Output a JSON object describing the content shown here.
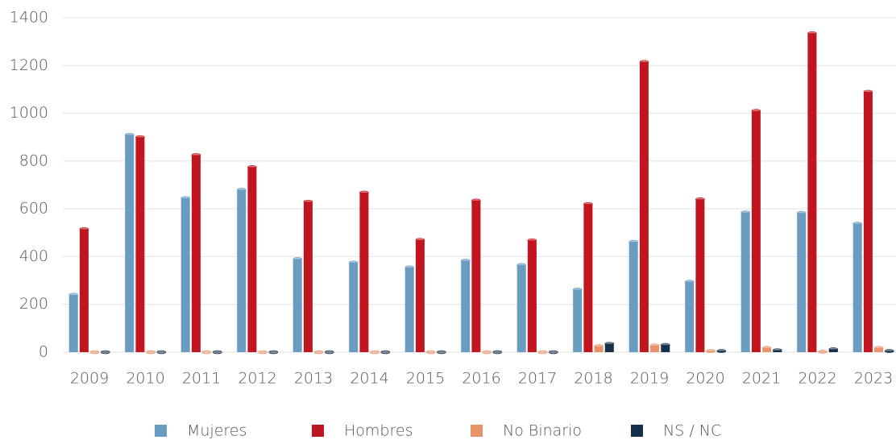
{
  "chart_data": {
    "type": "bar",
    "categories": [
      "2009",
      "2010",
      "2011",
      "2012",
      "2013",
      "2014",
      "2015",
      "2016",
      "2017",
      "2018",
      "2019",
      "2020",
      "2021",
      "2022",
      "2023"
    ],
    "series": [
      {
        "name": "Mujeres",
        "color": "#6a9cc1",
        "values": [
          240,
          910,
          645,
          680,
          390,
          375,
          355,
          383,
          365,
          262,
          462,
          295,
          585,
          583,
          538
        ]
      },
      {
        "name": "Hombres",
        "color": "#c1161f",
        "values": [
          515,
          900,
          825,
          775,
          630,
          668,
          470,
          635,
          468,
          620,
          1215,
          640,
          1010,
          1335,
          1090
        ]
      },
      {
        "name": "No Binario",
        "color": "#e8936a",
        "values": [
          0,
          0,
          0,
          0,
          0,
          0,
          0,
          0,
          0,
          25,
          28,
          5,
          18,
          2,
          18
        ]
      },
      {
        "name": "NS / NC",
        "color": "#15304b",
        "values": [
          0,
          0,
          0,
          0,
          0,
          0,
          0,
          0,
          0,
          35,
          30,
          5,
          8,
          12,
          5
        ]
      }
    ],
    "ylim": [
      0,
      1400
    ],
    "yticks": [
      0,
      200,
      400,
      600,
      800,
      1000,
      1200,
      1400
    ],
    "grid": true,
    "legend": "bottom"
  }
}
